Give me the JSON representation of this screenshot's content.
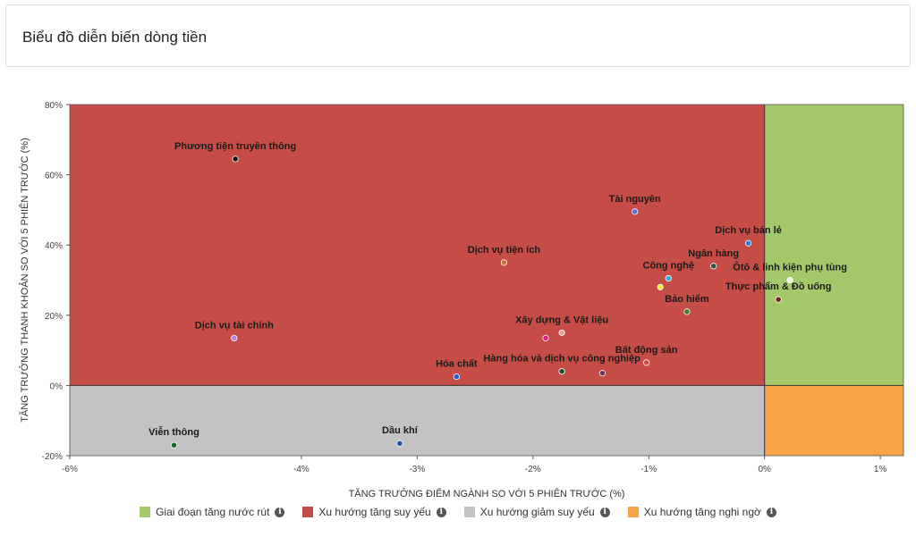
{
  "header": {
    "title": "Biểu đồ diễn biến dòng tiền"
  },
  "chart_data": {
    "type": "scatter",
    "xlabel": "TĂNG TRƯỞNG ĐIỂM NGÀNH SO VỚI 5 PHIÊN TRƯỚC (%)",
    "ylabel": "TĂNG TRƯỞNG THANH KHOẢN SO VỚI 5 PHIÊN TRƯỚC (%)",
    "xlim": [
      -6,
      1.2
    ],
    "ylim": [
      -20,
      80
    ],
    "x_ticks": [
      -6,
      -4,
      -3,
      -2,
      -1,
      0,
      1
    ],
    "x_tick_labels": [
      "-6%",
      "-4%",
      "-3%",
      "-2%",
      "-1%",
      "0%",
      "1%"
    ],
    "y_ticks": [
      80,
      60,
      40,
      20,
      0,
      -20
    ],
    "y_tick_labels": [
      "80%",
      "60%",
      "40%",
      "20%",
      "0%",
      "-20%"
    ],
    "quadrants": [
      {
        "name": "Giai đoạn tăng nước rút",
        "color": "#a4c96a"
      },
      {
        "name": "Xu hướng tăng suy yếu",
        "color": "#c64c48"
      },
      {
        "name": "Xu hướng giảm suy yếu",
        "color": "#c3c3c5"
      },
      {
        "name": "Xu hướng tăng nghi ngờ",
        "color": "#f7a348"
      }
    ],
    "points": [
      {
        "label": "Phương tiện truyền thông",
        "x": -4.57,
        "y": 64.5,
        "color": "#111111"
      },
      {
        "label": "Tài nguyên",
        "x": -1.12,
        "y": 49.5,
        "color": "#5b6fd6"
      },
      {
        "label": "Dịch vụ bán lẻ",
        "x": -0.14,
        "y": 40.5,
        "color": "#2e7ae0"
      },
      {
        "label": "Dịch vụ tiện ích",
        "x": -2.25,
        "y": 35.0,
        "color": "#e06a2a"
      },
      {
        "label": "Ngân hàng",
        "x": -0.44,
        "y": 34.0,
        "color": "#1e5a4a"
      },
      {
        "label": "Công nghệ",
        "x": -0.83,
        "y": 30.5,
        "color": "#2aaae8"
      },
      {
        "label": "Ôtô & linh kiện phụ tùng",
        "x": 0.22,
        "y": 30.0,
        "color": "#e8f0e0"
      },
      {
        "label": "",
        "x": -0.9,
        "y": 28.0,
        "color": "#f0f040"
      },
      {
        "label": "Thực phẩm & Đồ uống",
        "x": 0.12,
        "y": 24.5,
        "color": "#7a1a2a"
      },
      {
        "label": "Bảo hiểm",
        "x": -0.67,
        "y": 21.0,
        "color": "#3a7a2a"
      },
      {
        "label": "Xây dựng & Vật liệu",
        "x": -1.75,
        "y": 15.0,
        "color": "#e8a0a0"
      },
      {
        "label": "Dịch vụ tài chính",
        "x": -4.58,
        "y": 13.5,
        "color": "#c07ae0"
      },
      {
        "label": "",
        "x": -1.89,
        "y": 13.5,
        "color": "#e0207a"
      },
      {
        "label": "Bất động sản",
        "x": -1.02,
        "y": 6.5,
        "color": "#c64c48"
      },
      {
        "label": "Hàng hóa và dịch vụ công nghiệp",
        "x": -1.75,
        "y": 4.0,
        "color": "#1a4a3a"
      },
      {
        "label": "",
        "x": -1.4,
        "y": 3.5,
        "color": "#7a2a5a"
      },
      {
        "label": "Hóa chất",
        "x": -2.66,
        "y": 2.5,
        "color": "#1a5acc"
      },
      {
        "label": "Viễn thông",
        "x": -5.1,
        "y": -17.0,
        "color": "#1a6a2a"
      },
      {
        "label": "Dầu khí",
        "x": -3.15,
        "y": -16.5,
        "color": "#2050a0"
      }
    ]
  },
  "legend": [
    {
      "label": "Giai đoạn tăng nước rút",
      "color": "#a4c96a",
      "icon": "info-icon"
    },
    {
      "label": "Xu hướng tăng suy yếu",
      "color": "#c64c48",
      "icon": "info-icon"
    },
    {
      "label": "Xu hướng giảm suy yếu",
      "color": "#c3c3c5",
      "icon": "info-icon"
    },
    {
      "label": "Xu hướng tăng nghi ngờ",
      "color": "#f7a348",
      "icon": "info-icon"
    }
  ]
}
